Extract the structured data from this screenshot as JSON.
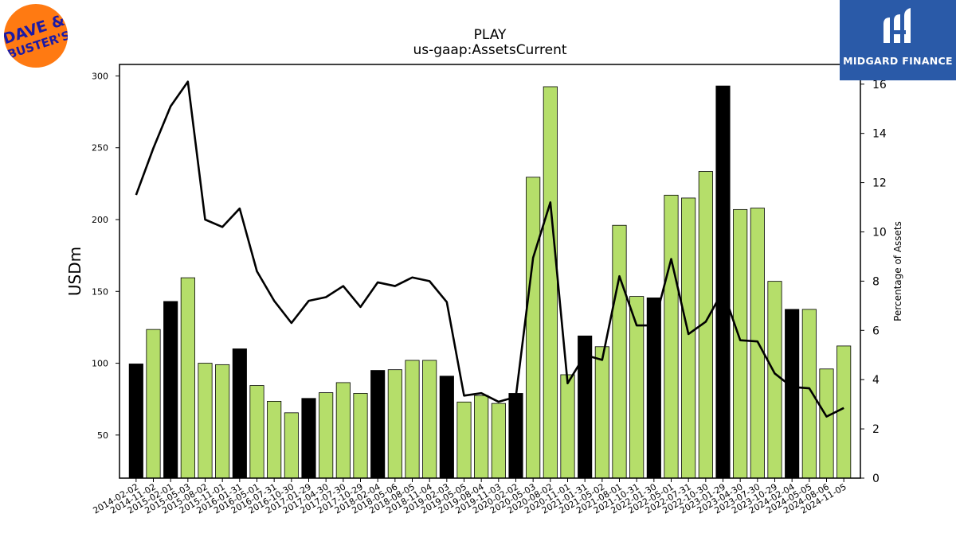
{
  "brand": {
    "company_logo_text": "DAVE & BUSTER'S",
    "company_logo_color": "#ff7a12",
    "company_logo_text_color": "#1a1aa6",
    "publisher": "MIDGARD FINANCE",
    "publisher_color": "#2a5aa8"
  },
  "chart_data": {
    "type": "bar",
    "title": "PLAY",
    "subtitle": "us-gaap:AssetsCurrent",
    "ylabel": "USDm",
    "y2label": "Percentage of Assets",
    "ylim": [
      20,
      308
    ],
    "y2lim": [
      0,
      16.8
    ],
    "yticks": [
      50,
      100,
      150,
      200,
      250,
      300
    ],
    "y2ticks": [
      0,
      2,
      4,
      6,
      8,
      10,
      12,
      14,
      16
    ],
    "colors": {
      "bar": "#b5de6a",
      "bar_highlight": "#000000",
      "line": "#000000"
    },
    "categories": [
      "2014-02-02",
      "2014-11-02",
      "2015-02-01",
      "2015-05-03",
      "2015-08-02",
      "2015-11-01",
      "2016-01-31",
      "2016-05-01",
      "2016-07-31",
      "2016-10-30",
      "2017-01-29",
      "2017-04-30",
      "2017-07-30",
      "2017-10-29",
      "2018-02-04",
      "2018-05-06",
      "2018-08-05",
      "2018-11-04",
      "2019-02-03",
      "2019-05-05",
      "2019-08-04",
      "2019-11-03",
      "2020-02-02",
      "2020-05-03",
      "2020-08-02",
      "2020-11-01",
      "2021-01-31",
      "2021-05-02",
      "2021-08-01",
      "2021-10-31",
      "2022-01-30",
      "2022-05-01",
      "2022-07-31",
      "2022-10-30",
      "2023-01-29",
      "2023-04-30",
      "2023-07-30",
      "2023-10-29",
      "2024-02-04",
      "2024-05-05",
      "2024-08-06",
      "2024-11-05"
    ],
    "series": [
      {
        "kind": "bar",
        "values": [
          99.5,
          123.5,
          143,
          159.5,
          100,
          99,
          110,
          84.5,
          73.5,
          65.5,
          75.5,
          79.5,
          86.5,
          79,
          95,
          95.5,
          102,
          102,
          91,
          73,
          77.5,
          72,
          79,
          229.5,
          292.5,
          92,
          119,
          111.5,
          196,
          146.5,
          145.5,
          217,
          215,
          233.5,
          293,
          207,
          208,
          157,
          137.5,
          137.5,
          96,
          112
        ],
        "highlight": [
          true,
          false,
          true,
          false,
          false,
          false,
          true,
          false,
          false,
          false,
          true,
          false,
          false,
          false,
          true,
          false,
          false,
          false,
          true,
          false,
          false,
          false,
          true,
          false,
          false,
          false,
          true,
          false,
          false,
          false,
          true,
          false,
          false,
          false,
          true,
          false,
          false,
          false,
          true,
          false,
          false,
          false
        ]
      },
      {
        "kind": "line",
        "axis": "right",
        "values": [
          11.5,
          13.4,
          15.1,
          16.1,
          10.5,
          10.2,
          10.95,
          8.4,
          7.2,
          6.3,
          7.2,
          7.35,
          7.8,
          6.95,
          7.95,
          7.8,
          8.15,
          8.0,
          7.15,
          3.35,
          3.45,
          3.1,
          3.3,
          8.95,
          11.2,
          3.85,
          5.0,
          4.8,
          8.2,
          6.2,
          6.2,
          8.9,
          5.85,
          6.35,
          7.6,
          5.6,
          5.55,
          4.25,
          3.7,
          3.65,
          2.5,
          2.85
        ]
      }
    ]
  }
}
